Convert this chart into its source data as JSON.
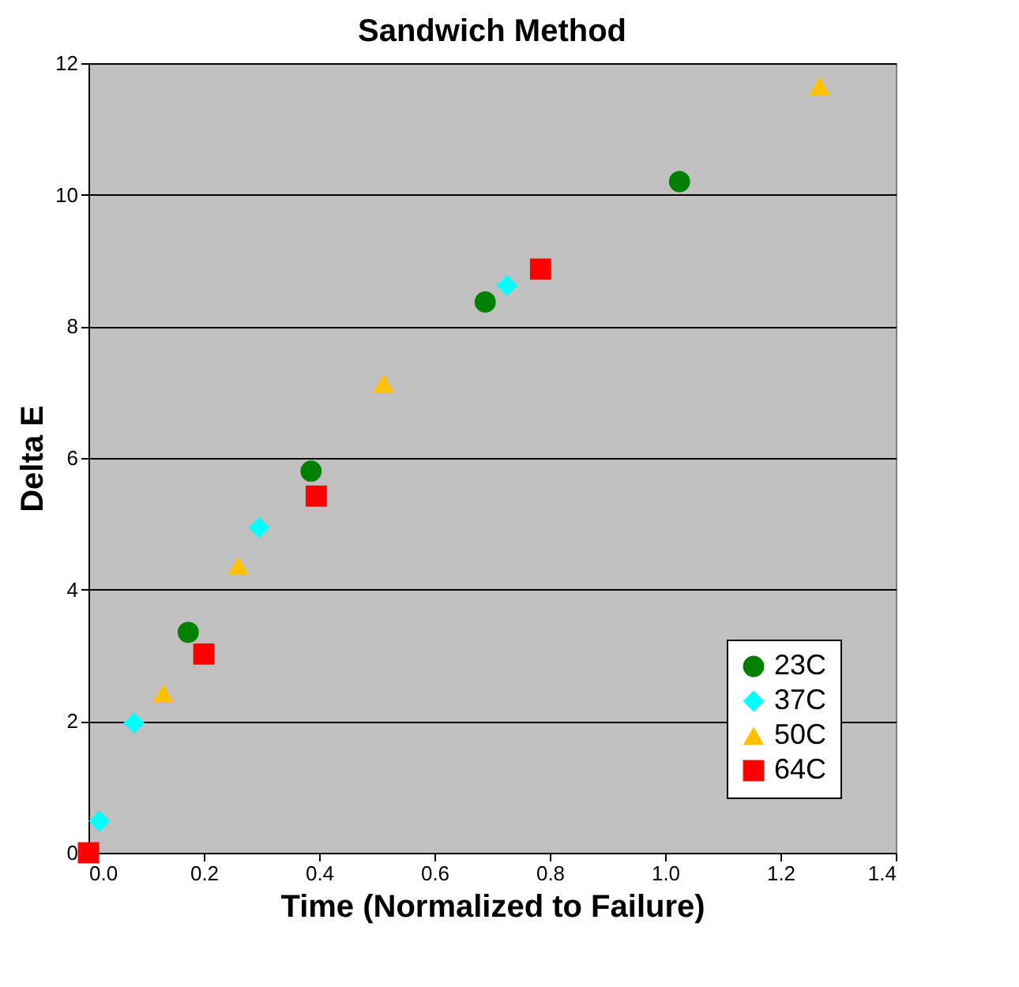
{
  "chart_data": {
    "type": "scatter",
    "title": "Sandwich Method",
    "xlabel": "Time (Normalized to Failure)",
    "ylabel": "Delta E",
    "xlim": [
      0,
      1.4
    ],
    "xticks": [
      {
        "value": 0,
        "label": "0.0"
      },
      {
        "value": 0.2,
        "label": "0.2"
      },
      {
        "value": 0.4,
        "label": "0.4"
      },
      {
        "value": 0.6,
        "label": "0.6"
      },
      {
        "value": 0.8,
        "label": "0.8"
      },
      {
        "value": 1,
        "label": "1.0"
      },
      {
        "value": 1.2,
        "label": "1.2"
      },
      {
        "value": 1.4,
        "label": "1.4"
      }
    ],
    "ylim": [
      0,
      12
    ],
    "yticks": [
      0,
      2,
      4,
      6,
      8,
      10,
      12
    ],
    "grid": "y",
    "legend": "bottom right",
    "series": [
      {
        "name": "23C",
        "color": "#008000",
        "marker": "circle",
        "x": [
          0.173,
          0.386,
          0.688,
          1.025
        ],
        "values": [
          3.35,
          5.8,
          8.37,
          10.2
        ]
      },
      {
        "name": "37C",
        "color": "#00ffff",
        "marker": "diamond",
        "x": [
          0.019,
          0.079,
          0.296,
          0.726
        ],
        "values": [
          0.48,
          1.97,
          4.94,
          8.62
        ]
      },
      {
        "name": "50C",
        "color": "#ffc000",
        "marker": "triangle",
        "x": [
          0.13,
          0.26,
          0.512,
          1.268
        ],
        "values": [
          2.42,
          4.36,
          7.13,
          11.65
        ]
      },
      {
        "name": "64C",
        "color": "#ff0000",
        "marker": "square",
        "x": [
          0,
          0.2,
          0.395,
          0.784
        ],
        "values": [
          0,
          3.02,
          5.42,
          8.87
        ]
      }
    ]
  }
}
